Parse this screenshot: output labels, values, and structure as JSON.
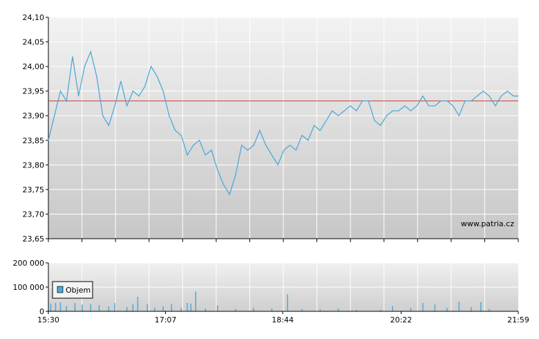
{
  "watermark": "www.patria.cz",
  "chart_data": [
    {
      "type": "line",
      "title": "",
      "xlabel": "",
      "ylabel": "",
      "x_ticks": [
        "15:30",
        "17:07",
        "18:44",
        "20:22",
        "21:59"
      ],
      "y_ticks": [
        "23,65",
        "23,70",
        "23,75",
        "23,80",
        "23,85",
        "23,90",
        "23,95",
        "24,00",
        "24,05",
        "24,10"
      ],
      "ylim": [
        23.65,
        24.1
      ],
      "grid": true,
      "reference_line": 23.93,
      "series": [
        {
          "x": [
            "15:30",
            "15:35",
            "15:40",
            "15:45",
            "15:50",
            "15:55",
            "16:00",
            "16:05",
            "16:10",
            "16:15",
            "16:20",
            "16:25",
            "16:30",
            "16:35",
            "16:40",
            "16:45",
            "16:50",
            "16:55",
            "17:00",
            "17:05",
            "17:10",
            "17:15",
            "17:20",
            "17:25",
            "17:30",
            "17:35",
            "17:40",
            "17:45",
            "17:50",
            "17:55",
            "18:00",
            "18:05",
            "18:10",
            "18:15",
            "18:20",
            "18:25",
            "18:30",
            "18:35",
            "18:40",
            "18:45",
            "18:50",
            "18:55",
            "19:00",
            "19:05",
            "19:10",
            "19:15",
            "19:20",
            "19:25",
            "19:30",
            "19:35",
            "19:40",
            "19:45",
            "19:50",
            "19:55",
            "20:00",
            "20:05",
            "20:10",
            "20:15",
            "20:20",
            "20:25",
            "20:30",
            "20:35",
            "20:40",
            "20:45",
            "20:50",
            "20:55",
            "21:00",
            "21:05",
            "21:10",
            "21:15",
            "21:20",
            "21:25",
            "21:30",
            "21:35",
            "21:40",
            "21:45",
            "21:50",
            "21:55",
            "21:59"
          ],
          "values": [
            23.85,
            23.9,
            23.95,
            23.93,
            24.02,
            23.94,
            24.0,
            24.03,
            23.98,
            23.9,
            23.88,
            23.92,
            23.97,
            23.92,
            23.95,
            23.94,
            23.96,
            24.0,
            23.98,
            23.95,
            23.9,
            23.87,
            23.86,
            23.82,
            23.84,
            23.85,
            23.82,
            23.83,
            23.79,
            23.76,
            23.74,
            23.78,
            23.84,
            23.83,
            23.84,
            23.87,
            23.84,
            23.82,
            23.8,
            23.83,
            23.84,
            23.83,
            23.86,
            23.85,
            23.88,
            23.87,
            23.89,
            23.91,
            23.9,
            23.91,
            23.92,
            23.91,
            23.93,
            23.93,
            23.89,
            23.88,
            23.9,
            23.91,
            23.91,
            23.92,
            23.91,
            23.92,
            23.94,
            23.92,
            23.92,
            23.93,
            23.93,
            23.92,
            23.9,
            23.93,
            23.93,
            23.94,
            23.95,
            23.94,
            23.92,
            23.94,
            23.95,
            23.94,
            23.94
          ]
        }
      ]
    },
    {
      "type": "bar",
      "title": "",
      "xlabel": "",
      "ylabel": "",
      "x_ticks": [
        "15:30",
        "17:07",
        "18:44",
        "20:22",
        "21:59"
      ],
      "y_ticks": [
        "0",
        "100 000",
        "200 000"
      ],
      "ylim": [
        0,
        200000
      ],
      "grid": true,
      "legend": {
        "label": "Objem",
        "placement": "left",
        "color": "#4da9d9"
      },
      "series": [
        {
          "name": "Objem",
          "x": [
            "15:32",
            "15:36",
            "15:40",
            "15:45",
            "15:52",
            "15:58",
            "16:05",
            "16:12",
            "16:20",
            "16:25",
            "16:35",
            "16:40",
            "16:44",
            "16:52",
            "16:58",
            "17:05",
            "17:12",
            "17:20",
            "17:25",
            "17:28",
            "17:32",
            "17:40",
            "17:50",
            "18:05",
            "18:20",
            "18:35",
            "18:48",
            "19:00",
            "19:15",
            "19:30",
            "19:45",
            "20:05",
            "20:15",
            "20:30",
            "20:40",
            "20:50",
            "21:00",
            "21:10",
            "21:20",
            "21:28",
            "21:35"
          ],
          "values": [
            32000,
            35000,
            38000,
            22000,
            35000,
            28000,
            30000,
            25000,
            20000,
            35000,
            18000,
            30000,
            60000,
            30000,
            15000,
            20000,
            30000,
            15000,
            35000,
            32000,
            82000,
            12000,
            25000,
            10000,
            14000,
            12000,
            70000,
            10000,
            8000,
            12000,
            6000,
            6000,
            22000,
            14000,
            35000,
            28000,
            14000,
            40000,
            18000,
            38000,
            10000
          ]
        }
      ]
    }
  ]
}
